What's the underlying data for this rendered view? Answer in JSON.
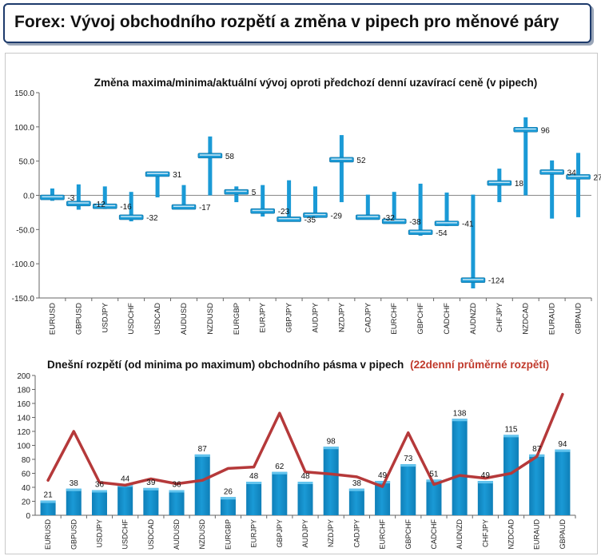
{
  "page": {
    "title": "Forex: Vývoj obchodního rozpětí a změna v pipech pro měnové páry"
  },
  "chart_data": [
    {
      "type": "range-bar",
      "title": "Změna maxima/minima/aktuální vývoj oproti předchozí denní uzavírací ceně (v pipech)",
      "categories": [
        "EURUSD",
        "GBPUSD",
        "USDJPY",
        "USDCHF",
        "USDCAD",
        "AUDUSD",
        "NZDUSD",
        "EURGBP",
        "EURJPY",
        "GBPJPY",
        "AUDJPY",
        "NZDJPY",
        "CADJPY",
        "EURCHF",
        "GBPCHF",
        "CADCHF",
        "AUDNZD",
        "CHFJPY",
        "NZDCAD",
        "EURAUD",
        "GBPAUD"
      ],
      "high": [
        10,
        16,
        13,
        5,
        34,
        15,
        86,
        13,
        15,
        22,
        13,
        88,
        1,
        5,
        17,
        4,
        1,
        39,
        114,
        51,
        62
      ],
      "low": [
        -8,
        -21,
        -20,
        -38,
        -3,
        -20,
        0,
        -10,
        -31,
        -38,
        -33,
        -10,
        -33,
        -39,
        -59,
        -45,
        -136,
        -10,
        0,
        -34,
        -32
      ],
      "current": [
        -3,
        -12,
        -16,
        -32,
        31,
        -17,
        58,
        5,
        -23,
        -35,
        -29,
        52,
        -32,
        -38,
        -54,
        -41,
        -124,
        18,
        96,
        34,
        27
      ],
      "current_labels": [
        "-3",
        "-12",
        "-16",
        "-32",
        "31",
        "-17",
        "58",
        "5",
        "-23",
        "-35",
        "-29",
        "52",
        "-32",
        "-38",
        "-54",
        "-41",
        "-124",
        "18",
        "96",
        "34",
        "27"
      ],
      "ylim": [
        -150,
        150
      ],
      "yticks": [
        150,
        100,
        50,
        0,
        -50,
        -100,
        -150
      ],
      "ytick_labels": [
        "150.0",
        "100.0",
        "50.0",
        "0.0",
        "-50.0",
        "-100.0",
        "-150.0"
      ],
      "grid": false,
      "legend": "none",
      "colors": {
        "bar": "#1a9ad6",
        "marker": "#1a9ad6",
        "marker_highlight": "#d9eef8"
      }
    },
    {
      "type": "bar-line",
      "title": "Dnešní rozpětí (od minima po maximum) obchodního pásma v pipech",
      "title_red": "(22denní průměrné rozpětí)",
      "categories": [
        "EURUSD",
        "GBPUSD",
        "USDJPY",
        "USDCHF",
        "USDCAD",
        "AUDUSD",
        "NZDUSD",
        "EURGBP",
        "EURJPY",
        "GBPJPY",
        "AUDJPY",
        "NZDJPY",
        "CADJPY",
        "EURCHF",
        "GBPCHF",
        "CADCHF",
        "AUDNZD",
        "CHFJPY",
        "NZDCAD",
        "EURAUD",
        "GBPAUD"
      ],
      "values": [
        21,
        38,
        36,
        44,
        39,
        36,
        87,
        26,
        48,
        62,
        48,
        98,
        38,
        49,
        73,
        51,
        138,
        49,
        115,
        87,
        94
      ],
      "value_labels": [
        "21",
        "38",
        "36",
        "44",
        "39",
        "36",
        "87",
        "26",
        "48",
        "62",
        "48",
        "98",
        "38",
        "49",
        "73",
        "51",
        "138",
        "49",
        "115",
        "87",
        "94"
      ],
      "line_values": [
        50,
        120,
        47,
        43,
        52,
        45,
        50,
        67,
        69,
        146,
        62,
        59,
        55,
        41,
        118,
        44,
        57,
        53,
        60,
        84,
        173
      ],
      "ylim": [
        0,
        200
      ],
      "yticks": [
        0,
        20,
        40,
        60,
        80,
        100,
        120,
        140,
        160,
        180,
        200
      ],
      "ytick_labels": [
        "0",
        "20",
        "40",
        "60",
        "80",
        "100",
        "120",
        "140",
        "160",
        "180",
        "200"
      ],
      "grid": false,
      "legend": "none",
      "colors": {
        "bar": "#1a9ad6",
        "bar_top": "#63c4ee",
        "line": "#b5393a",
        "title_red": "#c0392b"
      }
    }
  ]
}
